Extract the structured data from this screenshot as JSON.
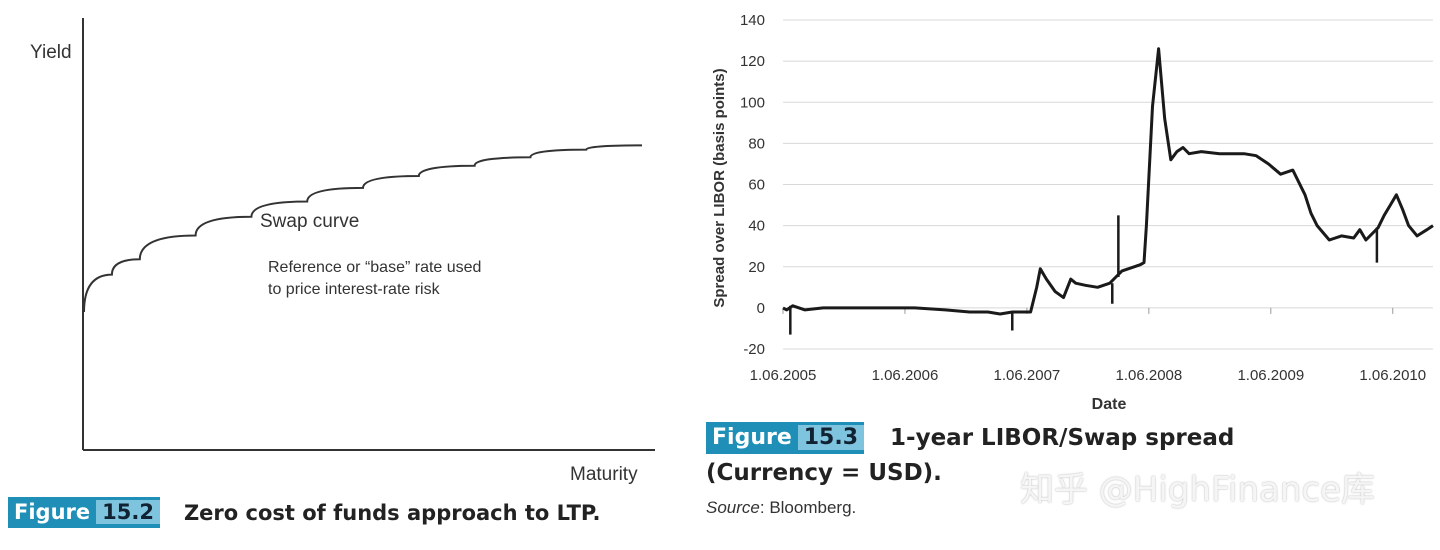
{
  "chart_data": [
    {
      "type": "line",
      "title": "Zero cost of funds approach to LTP",
      "xlabel": "Maturity",
      "ylabel": "Yield",
      "series": [
        {
          "name": "Swap curve",
          "x": [
            0,
            0.05,
            0.1,
            0.2,
            0.3,
            0.4,
            0.5,
            0.6,
            0.7,
            0.8,
            0.9,
            1.0
          ],
          "y": [
            0.0,
            0.22,
            0.31,
            0.45,
            0.56,
            0.65,
            0.73,
            0.8,
            0.86,
            0.91,
            0.955,
            0.98
          ]
        }
      ],
      "labels": {
        "curve_name": "Swap curve",
        "annotation_line1": "Reference or “base” rate used",
        "annotation_line2": "to  price interest-rate risk"
      },
      "figure": {
        "word": "Figure",
        "number": "15.2",
        "caption": "Zero cost of funds approach to LTP."
      }
    },
    {
      "type": "line",
      "title": "1-year LIBOR/Swap spread (Currency = USD).",
      "xlabel": "Date",
      "ylabel": "Spread over LIBOR (basis points)",
      "ylim": [
        -20,
        140
      ],
      "xlim": [
        2005.42,
        2010.75
      ],
      "yticks": [
        -20,
        0,
        20,
        40,
        60,
        80,
        100,
        120,
        140
      ],
      "ytick_labels": [
        "-20",
        "0",
        "20",
        "40",
        "60",
        "80",
        "100",
        "120",
        "140"
      ],
      "xticks": [
        2005.42,
        2006.42,
        2007.42,
        2008.42,
        2009.42,
        2010.42
      ],
      "xtick_labels": [
        "1.06.2005",
        "1.06.2006",
        "1.06.2007",
        "1.06.2008",
        "1.06.2009",
        "1.06.2010"
      ],
      "series": [
        {
          "name": "1-year LIBOR/Swap spread",
          "x": [
            2005.42,
            2005.45,
            2005.5,
            2005.6,
            2005.75,
            2006.0,
            2006.25,
            2006.5,
            2006.75,
            2006.95,
            2007.1,
            2007.2,
            2007.3,
            2007.45,
            2007.5,
            2007.53,
            2007.58,
            2007.65,
            2007.72,
            2007.78,
            2007.82,
            2007.9,
            2008.0,
            2008.1,
            2008.15,
            2008.2,
            2008.3,
            2008.35,
            2008.38,
            2008.4,
            2008.45,
            2008.5,
            2008.55,
            2008.6,
            2008.65,
            2008.7,
            2008.75,
            2008.85,
            2009.0,
            2009.2,
            2009.3,
            2009.4,
            2009.5,
            2009.6,
            2009.65,
            2009.7,
            2009.75,
            2009.8,
            2009.9,
            2010.0,
            2010.1,
            2010.15,
            2010.2,
            2010.3,
            2010.35,
            2010.4,
            2010.45,
            2010.5,
            2010.55,
            2010.62,
            2010.7,
            2010.75
          ],
          "y": [
            0,
            -1,
            1,
            -1,
            0,
            0,
            0,
            0,
            -1,
            -2,
            -2,
            -3,
            -2,
            -2,
            10,
            19,
            14,
            8,
            5,
            14,
            12,
            11,
            10,
            12,
            15,
            18,
            20,
            21,
            22,
            40,
            98,
            126,
            92,
            72,
            76,
            78,
            75,
            76,
            75,
            75,
            74,
            70,
            65,
            67,
            61,
            55,
            46,
            40,
            33,
            35,
            34,
            38,
            33,
            39,
            45,
            50,
            55,
            48,
            40,
            35,
            38,
            40
          ],
          "spikes": [
            {
              "x": 2005.48,
              "y": -13
            },
            {
              "x": 2007.3,
              "y": -11
            },
            {
              "x": 2008.17,
              "y": 45
            },
            {
              "x": 2008.12,
              "y": 2
            },
            {
              "x": 2010.29,
              "y": 22
            }
          ]
        }
      ],
      "figure": {
        "word": "Figure",
        "number": "15.3",
        "caption_line1": "1-year LIBOR/Swap spread",
        "caption_line2": "(Currency = USD).",
        "source_label": "Source",
        "source_value": ": Bloomberg."
      }
    }
  ],
  "watermark": "知乎 @HighFinance库"
}
